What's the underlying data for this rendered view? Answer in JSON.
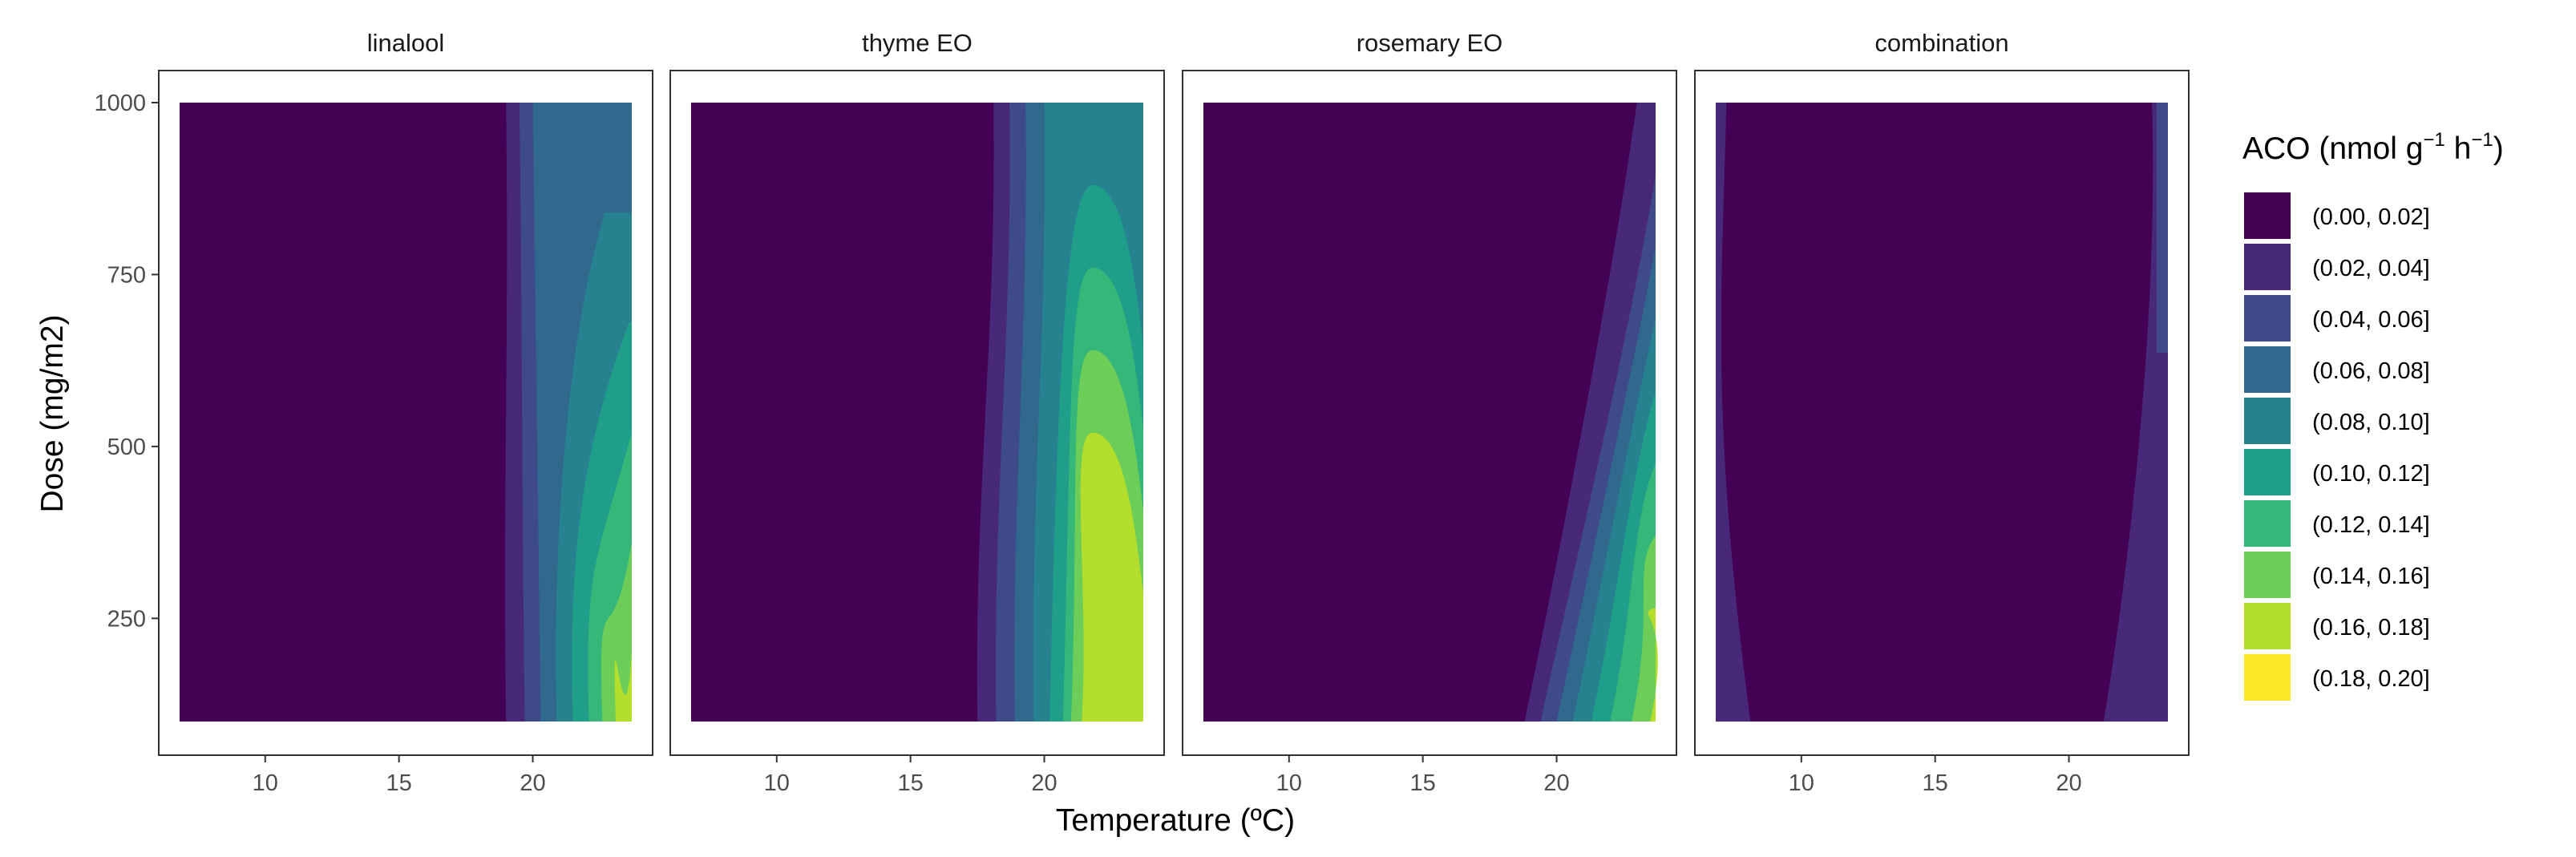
{
  "chart_data": {
    "type": "contour",
    "xlabel": "Temperature (ºC)",
    "ylabel": "Dose (mg/m2)",
    "x_ticks": [
      10,
      15,
      20
    ],
    "y_ticks": [
      250,
      500,
      750,
      1000
    ],
    "xlim": [
      6.8,
      23.7
    ],
    "ylim": [
      100,
      1000
    ],
    "panels": [
      {
        "title": "linalool",
        "level_boundaries": [
          {
            "T_at_100": 19.0,
            "T_at_1000": 19.0,
            "label": "0.02"
          },
          {
            "T_at_100": 19.7,
            "T_at_1000": 19.5,
            "label": "0.04"
          },
          {
            "T_at_100": 20.3,
            "T_at_1000": 20.0,
            "label": "0.06"
          },
          {
            "T_at_100": 20.9,
            "T_at_1000": 23.0,
            "label": "0.08"
          },
          {
            "T_at_100": 21.5,
            "T_at_1000": 23.6,
            "label": "0.10"
          },
          {
            "T_at_100": 22.1,
            "T_at_1000": 23.7,
            "label": "0.12"
          },
          {
            "T_at_100": 22.6,
            "T_at_1000": 23.7,
            "label": "0.14"
          },
          {
            "T_at_100": 23.1,
            "T_at_1000": 23.7,
            "label": "0.16"
          }
        ]
      },
      {
        "title": "thyme EO",
        "level_boundaries": [
          {
            "T_at_100": 17.5,
            "T_at_1000": 18.1,
            "label": "0.02"
          },
          {
            "T_at_100": 18.2,
            "T_at_1000": 18.7,
            "label": "0.04"
          },
          {
            "T_at_100": 18.9,
            "T_at_1000": 19.3,
            "label": "0.06"
          },
          {
            "T_at_100": 19.6,
            "T_at_1000": 20.0,
            "label": "0.08"
          },
          {
            "T_at_100": 20.2,
            "T_at_1000": 23.0,
            "label": "0.10"
          },
          {
            "T_at_100": 20.7,
            "T_at_1000": 23.0,
            "label": "0.12"
          },
          {
            "T_at_100": 21.0,
            "T_at_1000": 23.0,
            "label": "0.14"
          },
          {
            "T_at_100": 21.4,
            "T_at_1000": 23.0,
            "label": "0.16"
          }
        ]
      },
      {
        "title": "rosemary EO",
        "level_boundaries": [
          {
            "T_at_100": 18.8,
            "T_at_1000": 23.0,
            "label": "0.02"
          },
          {
            "T_at_100": 19.4,
            "T_at_1000": 23.7,
            "label": "0.04"
          },
          {
            "T_at_100": 20.0,
            "T_at_1000": 23.7,
            "label": "0.06"
          },
          {
            "T_at_100": 20.6,
            "T_at_1000": 23.7,
            "label": "0.08"
          },
          {
            "T_at_100": 21.3,
            "T_at_1000": 23.7,
            "label": "0.10"
          },
          {
            "T_at_100": 22.0,
            "T_at_1000": 23.7,
            "label": "0.12"
          },
          {
            "T_at_100": 22.8,
            "T_at_1000": 23.7,
            "label": "0.14"
          },
          {
            "T_at_100": 23.5,
            "T_at_1000": 23.7,
            "label": "0.16"
          }
        ]
      },
      {
        "title": "combination",
        "level_boundaries": [
          {
            "T_at_100": 21.3,
            "T_at_1000": 23.1,
            "label": "0.02 (right)"
          },
          {
            "T_at_100": 8.1,
            "T_at_1000": 7.2,
            "label": "0.02 (left)"
          }
        ]
      }
    ],
    "legend": {
      "title_main": "ACO (nmol g",
      "title_sup1": "−1",
      "title_mid": " h",
      "title_sup2": "−1",
      "title_end": ")",
      "position": "right",
      "bins": [
        {
          "label": "(0.00, 0.02]",
          "color": "#440154"
        },
        {
          "label": "(0.02, 0.04]",
          "color": "#482878"
        },
        {
          "label": "(0.04, 0.06]",
          "color": "#3E4A89"
        },
        {
          "label": "(0.06, 0.08]",
          "color": "#31688E"
        },
        {
          "label": "(0.08, 0.10]",
          "color": "#26828E"
        },
        {
          "label": "(0.10, 0.12]",
          "color": "#1F9E89"
        },
        {
          "label": "(0.12, 0.14]",
          "color": "#35B779"
        },
        {
          "label": "(0.14, 0.16]",
          "color": "#6DCD59"
        },
        {
          "label": "(0.16, 0.18]",
          "color": "#B4DE2C"
        },
        {
          "label": "(0.18, 0.20]",
          "color": "#FDE725"
        }
      ]
    },
    "grid": false
  }
}
